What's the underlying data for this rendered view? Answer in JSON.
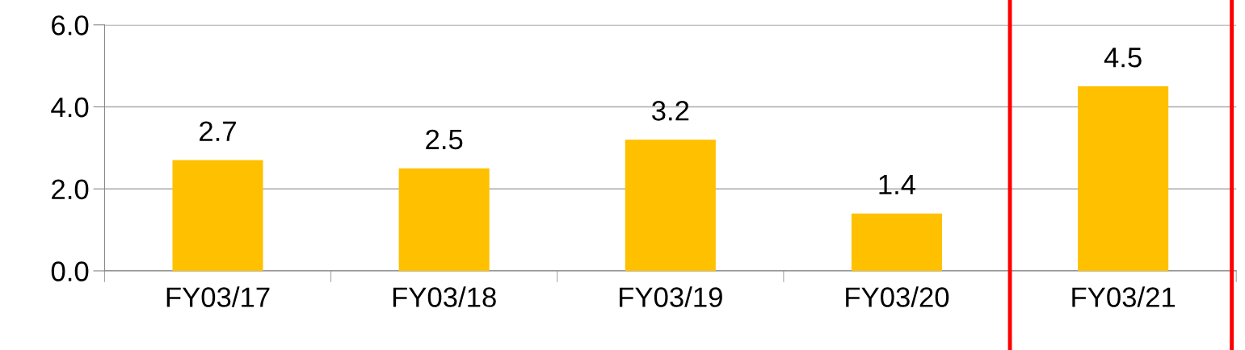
{
  "chart_data": {
    "type": "bar",
    "categories": [
      "FY03/17",
      "FY03/18",
      "FY03/19",
      "FY03/20",
      "FY03/21"
    ],
    "values": [
      2.7,
      2.5,
      3.2,
      1.4,
      4.5
    ],
    "color": "#ffc000",
    "ylim": [
      0,
      6
    ],
    "yticks": [
      {
        "value": 0,
        "label": "0.0"
      },
      {
        "value": 2,
        "label": "2.0"
      },
      {
        "value": 4,
        "label": "4.0"
      },
      {
        "value": 6,
        "label": "6.0"
      }
    ],
    "grid": "y",
    "data_labels": true
  }
}
